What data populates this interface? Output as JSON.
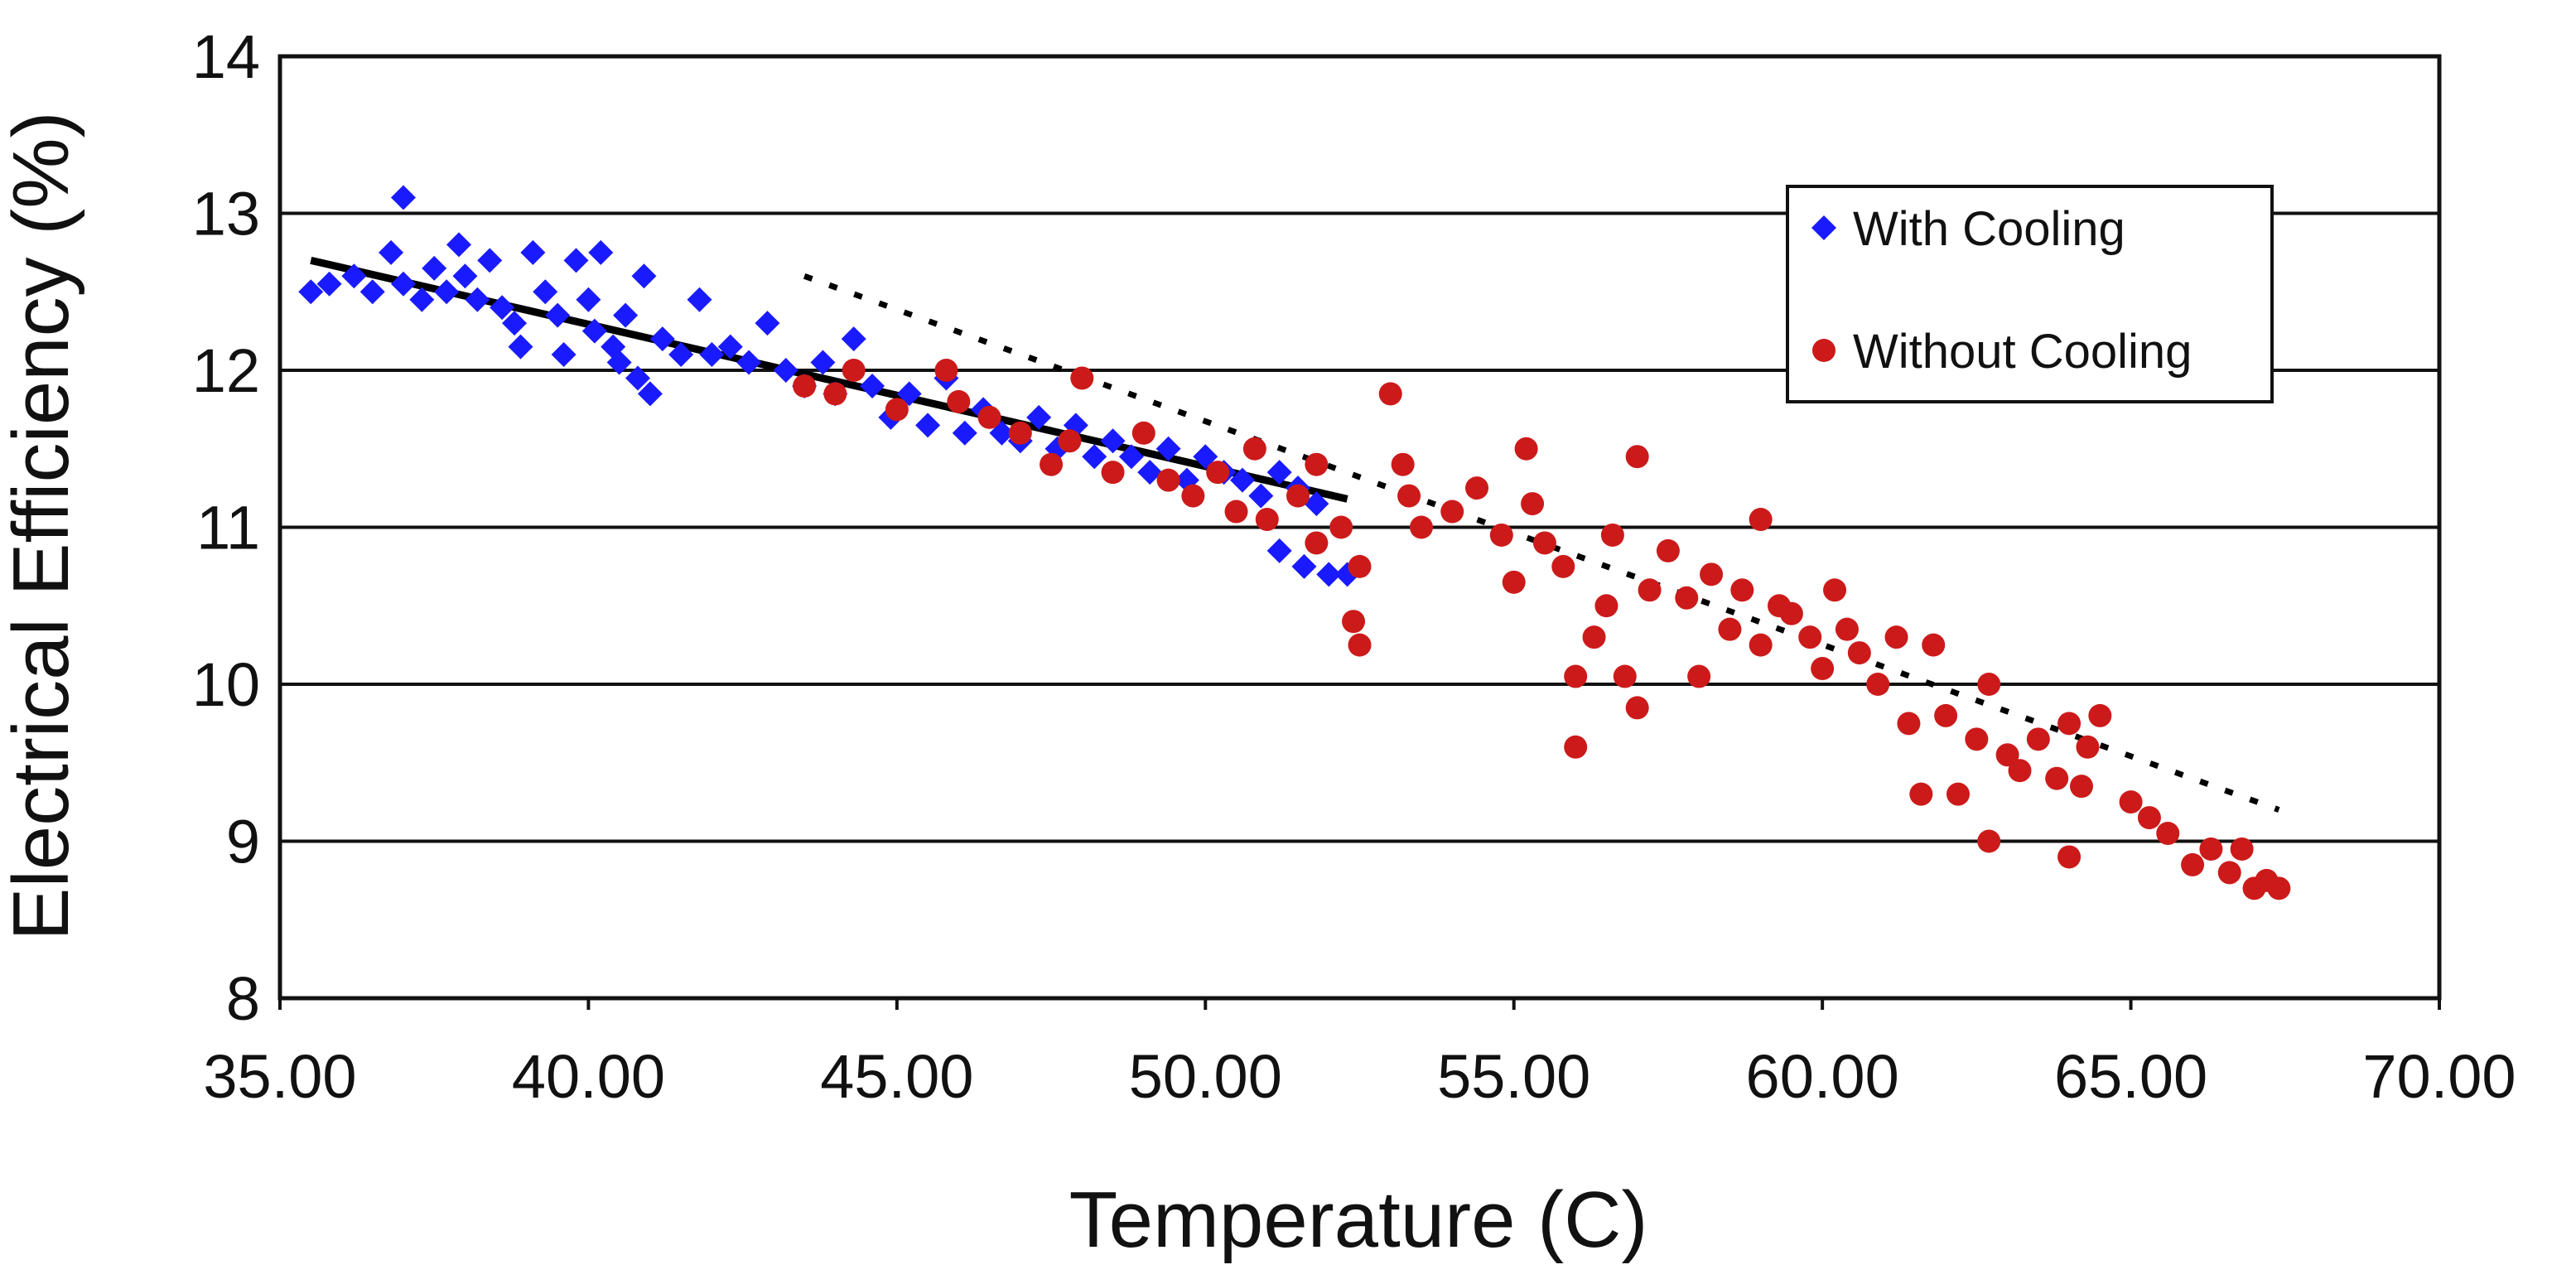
{
  "chart_data": {
    "type": "scatter",
    "title": "",
    "xlabel": "Temperature (C)",
    "ylabel": "Electrical Efficiency (%)",
    "xlim": [
      35,
      70
    ],
    "ylim": [
      8,
      14
    ],
    "xticks": [
      "35.00",
      "40.00",
      "45.00",
      "50.00",
      "55.00",
      "60.00",
      "65.00",
      "70.00"
    ],
    "yticks": [
      "8",
      "9",
      "10",
      "11",
      "12",
      "13",
      "14"
    ],
    "grid": "horizontal",
    "legend_position": "top-right",
    "series": [
      {
        "name": "With Cooling",
        "marker": "diamond",
        "color": "#1a1aff",
        "points": [
          [
            35.5,
            12.5
          ],
          [
            35.8,
            12.55
          ],
          [
            36.2,
            12.6
          ],
          [
            36.5,
            12.5
          ],
          [
            36.8,
            12.75
          ],
          [
            37.0,
            12.55
          ],
          [
            37.0,
            13.1
          ],
          [
            37.3,
            12.45
          ],
          [
            37.5,
            12.65
          ],
          [
            37.7,
            12.5
          ],
          [
            37.9,
            12.8
          ],
          [
            38.0,
            12.6
          ],
          [
            38.2,
            12.45
          ],
          [
            38.4,
            12.7
          ],
          [
            38.6,
            12.4
          ],
          [
            38.8,
            12.3
          ],
          [
            38.9,
            12.15
          ],
          [
            39.1,
            12.75
          ],
          [
            39.3,
            12.5
          ],
          [
            39.5,
            12.35
          ],
          [
            39.6,
            12.1
          ],
          [
            39.8,
            12.7
          ],
          [
            40.0,
            12.45
          ],
          [
            40.1,
            12.25
          ],
          [
            40.2,
            12.75
          ],
          [
            40.4,
            12.15
          ],
          [
            40.5,
            12.05
          ],
          [
            40.6,
            12.35
          ],
          [
            40.8,
            11.95
          ],
          [
            40.9,
            12.6
          ],
          [
            41.0,
            11.85
          ],
          [
            41.2,
            12.2
          ],
          [
            41.5,
            12.1
          ],
          [
            41.8,
            12.45
          ],
          [
            42.0,
            12.1
          ],
          [
            42.3,
            12.15
          ],
          [
            42.6,
            12.05
          ],
          [
            42.9,
            12.3
          ],
          [
            43.2,
            12.0
          ],
          [
            43.5,
            11.9
          ],
          [
            43.8,
            12.05
          ],
          [
            44.0,
            11.85
          ],
          [
            44.3,
            12.2
          ],
          [
            44.6,
            11.9
          ],
          [
            44.9,
            11.7
          ],
          [
            45.2,
            11.85
          ],
          [
            45.5,
            11.65
          ],
          [
            45.8,
            11.95
          ],
          [
            46.1,
            11.6
          ],
          [
            46.4,
            11.75
          ],
          [
            46.7,
            11.6
          ],
          [
            47.0,
            11.55
          ],
          [
            47.3,
            11.7
          ],
          [
            47.6,
            11.5
          ],
          [
            47.9,
            11.65
          ],
          [
            48.2,
            11.45
          ],
          [
            48.5,
            11.55
          ],
          [
            48.8,
            11.45
          ],
          [
            49.1,
            11.35
          ],
          [
            49.4,
            11.5
          ],
          [
            49.7,
            11.3
          ],
          [
            50.0,
            11.45
          ],
          [
            50.3,
            11.35
          ],
          [
            50.6,
            11.3
          ],
          [
            50.9,
            11.2
          ],
          [
            51.2,
            11.35
          ],
          [
            51.5,
            11.25
          ],
          [
            51.8,
            11.15
          ],
          [
            51.2,
            10.85
          ],
          [
            51.6,
            10.75
          ],
          [
            52.0,
            10.7
          ],
          [
            52.3,
            10.7
          ]
        ]
      },
      {
        "name": "Without Cooling",
        "marker": "circle",
        "color": "#cc1a1a",
        "points": [
          [
            43.5,
            11.9
          ],
          [
            44.0,
            11.85
          ],
          [
            44.3,
            12.0
          ],
          [
            45.0,
            11.75
          ],
          [
            45.8,
            12.0
          ],
          [
            46.0,
            11.8
          ],
          [
            46.5,
            11.7
          ],
          [
            47.0,
            11.6
          ],
          [
            47.5,
            11.4
          ],
          [
            47.8,
            11.55
          ],
          [
            48.0,
            11.95
          ],
          [
            48.5,
            11.35
          ],
          [
            49.0,
            11.6
          ],
          [
            49.4,
            11.3
          ],
          [
            49.8,
            11.2
          ],
          [
            50.2,
            11.35
          ],
          [
            50.5,
            11.1
          ],
          [
            50.8,
            11.5
          ],
          [
            51.0,
            11.05
          ],
          [
            51.5,
            11.2
          ],
          [
            51.8,
            11.4
          ],
          [
            51.8,
            10.9
          ],
          [
            52.2,
            11.0
          ],
          [
            52.5,
            10.75
          ],
          [
            52.4,
            10.4
          ],
          [
            52.5,
            10.25
          ],
          [
            53.0,
            11.85
          ],
          [
            53.2,
            11.4
          ],
          [
            53.3,
            11.2
          ],
          [
            53.5,
            11.0
          ],
          [
            54.0,
            11.1
          ],
          [
            54.4,
            11.25
          ],
          [
            54.8,
            10.95
          ],
          [
            55.0,
            10.65
          ],
          [
            55.2,
            11.5
          ],
          [
            55.3,
            11.15
          ],
          [
            55.5,
            10.9
          ],
          [
            55.8,
            10.75
          ],
          [
            56.0,
            10.05
          ],
          [
            56.0,
            9.6
          ],
          [
            56.3,
            10.3
          ],
          [
            56.5,
            10.5
          ],
          [
            56.6,
            10.95
          ],
          [
            56.8,
            10.05
          ],
          [
            57.0,
            9.85
          ],
          [
            57.0,
            11.45
          ],
          [
            57.2,
            10.6
          ],
          [
            57.5,
            10.85
          ],
          [
            57.8,
            10.55
          ],
          [
            58.0,
            10.05
          ],
          [
            58.2,
            10.7
          ],
          [
            58.5,
            10.35
          ],
          [
            58.7,
            10.6
          ],
          [
            59.0,
            11.05
          ],
          [
            59.0,
            10.25
          ],
          [
            59.3,
            10.5
          ],
          [
            59.5,
            10.45
          ],
          [
            59.8,
            10.3
          ],
          [
            60.0,
            10.1
          ],
          [
            60.2,
            10.6
          ],
          [
            60.4,
            10.35
          ],
          [
            60.6,
            10.2
          ],
          [
            60.9,
            10.0
          ],
          [
            61.2,
            10.3
          ],
          [
            61.4,
            9.75
          ],
          [
            61.6,
            9.3
          ],
          [
            61.8,
            10.25
          ],
          [
            62.0,
            9.8
          ],
          [
            62.2,
            9.3
          ],
          [
            62.5,
            9.65
          ],
          [
            62.7,
            10.0
          ],
          [
            62.7,
            9.0
          ],
          [
            63.0,
            9.55
          ],
          [
            63.2,
            9.45
          ],
          [
            63.5,
            9.65
          ],
          [
            63.8,
            9.4
          ],
          [
            64.0,
            9.75
          ],
          [
            64.0,
            8.9
          ],
          [
            64.3,
            9.6
          ],
          [
            64.5,
            9.8
          ],
          [
            64.2,
            9.35
          ],
          [
            65.0,
            9.25
          ],
          [
            65.3,
            9.15
          ],
          [
            65.6,
            9.05
          ],
          [
            66.0,
            8.85
          ],
          [
            66.3,
            8.95
          ],
          [
            66.6,
            8.8
          ],
          [
            66.8,
            8.95
          ],
          [
            67.0,
            8.7
          ],
          [
            67.2,
            8.75
          ],
          [
            67.4,
            8.7
          ]
        ]
      }
    ],
    "trendlines": [
      {
        "series": "With Cooling",
        "style": "solid",
        "x": [
          35.5,
          52.3
        ],
        "y": [
          12.7,
          11.18
        ]
      },
      {
        "series": "Without Cooling",
        "style": "dotted",
        "x": [
          43.5,
          67.4
        ],
        "y": [
          12.6,
          9.2
        ]
      }
    ]
  },
  "colors": {
    "grid": "#111111",
    "axis": "#111111",
    "trend": "#000000"
  }
}
